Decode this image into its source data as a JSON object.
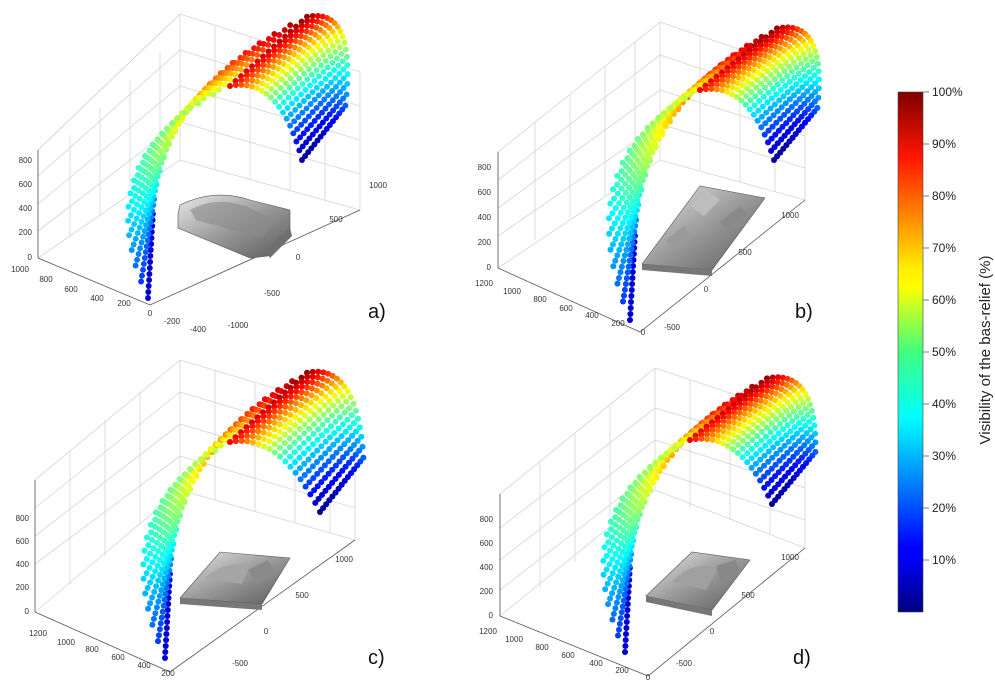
{
  "chart_data": [
    {
      "type": "scatter",
      "panel_label": "a)",
      "z_ticks": [
        "0",
        "200",
        "400",
        "600",
        "800"
      ],
      "x_ticks": [
        "1000",
        "800",
        "600",
        "400",
        "200",
        "0",
        "-200",
        "-400"
      ],
      "y_ticks": [
        "-1000",
        "-500",
        "0",
        "500",
        "1000"
      ],
      "x_range": [
        -400,
        1000
      ],
      "y_range": [
        -1000,
        1000
      ],
      "z_range": [
        0,
        800
      ],
      "color_variable": "Visibility of the bas-relief (%)",
      "grid": true
    },
    {
      "type": "scatter",
      "panel_label": "b)",
      "z_ticks": [
        "0",
        "200",
        "400",
        "600",
        "800"
      ],
      "x_ticks": [
        "1200",
        "1000",
        "800",
        "600",
        "400",
        "200",
        "0"
      ],
      "y_ticks": [
        "-500",
        "0",
        "500",
        "1000"
      ],
      "x_range": [
        0,
        1200
      ],
      "y_range": [
        -500,
        1000
      ],
      "z_range": [
        0,
        800
      ],
      "color_variable": "Visibility of the bas-relief (%)",
      "grid": true
    },
    {
      "type": "scatter",
      "panel_label": "c)",
      "z_ticks": [
        "0",
        "200",
        "400",
        "600",
        "800"
      ],
      "x_ticks": [
        "1200",
        "1000",
        "800",
        "600",
        "400",
        "200"
      ],
      "y_ticks": [
        "-500",
        "0",
        "500",
        "1000"
      ],
      "x_range": [
        200,
        1200
      ],
      "y_range": [
        -500,
        1000
      ],
      "z_range": [
        0,
        800
      ],
      "color_variable": "Visibility of the bas-relief (%)",
      "grid": true
    },
    {
      "type": "scatter",
      "panel_label": "d)",
      "z_ticks": [
        "0",
        "200",
        "400",
        "600",
        "800"
      ],
      "x_ticks": [
        "1200",
        "1000",
        "800",
        "600",
        "400",
        "200",
        "0"
      ],
      "y_ticks": [
        "-500",
        "0",
        "500",
        "1000"
      ],
      "x_range": [
        0,
        1200
      ],
      "y_range": [
        -500,
        1000
      ],
      "z_range": [
        0,
        800
      ],
      "color_variable": "Visibility of the bas-relief (%)",
      "grid": true
    }
  ],
  "colorbar": {
    "title": "Visibility of the bas-relief (%)",
    "ticks": [
      "100%",
      "90%",
      "80%",
      "70%",
      "60%",
      "50%",
      "40%",
      "30%",
      "20%",
      "10%"
    ],
    "colormap": "jet",
    "range": [
      0,
      100
    ]
  }
}
